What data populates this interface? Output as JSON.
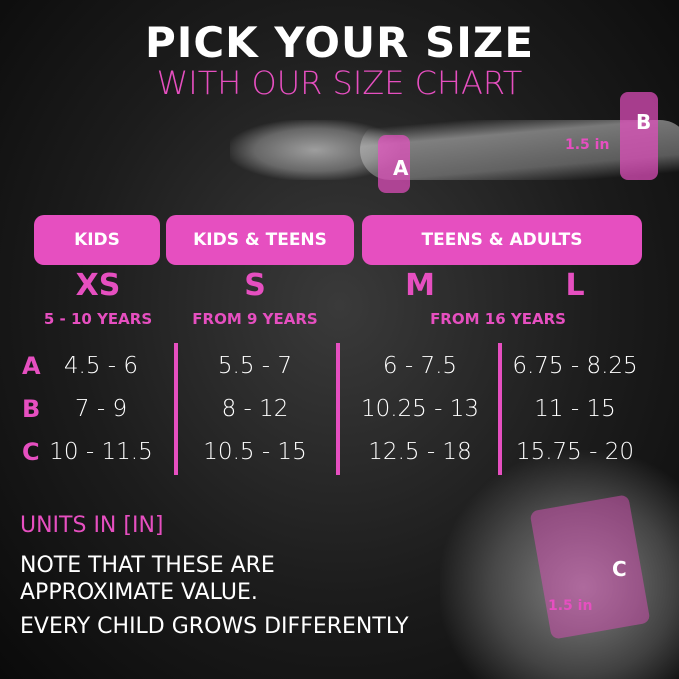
{
  "header": {
    "title": "PICK YOUR SIZE",
    "subtitle": "WITH OUR SIZE CHART"
  },
  "illustration": {
    "band_a": "A",
    "band_b": "B",
    "band_c": "C",
    "width_top": "1.5 in",
    "width_bottom": "1.5 in"
  },
  "groups": [
    "KIDS",
    "KIDS & TEENS",
    "TEENS & ADULTS"
  ],
  "sizes": [
    {
      "label": "XS",
      "age": "5 - 10 YEARS"
    },
    {
      "label": "S",
      "age": "FROM 9 YEARS"
    },
    {
      "label": "M"
    },
    {
      "label": "L"
    }
  ],
  "shared_age": "FROM 16 YEARS",
  "rows": [
    {
      "label": "A",
      "values": [
        "4.5 - 6",
        "5.5 - 7",
        "6 - 7.5",
        "6.75 - 8.25"
      ]
    },
    {
      "label": "B",
      "values": [
        "7 - 9",
        "8 - 12",
        "10.25 - 13",
        "11 - 15"
      ]
    },
    {
      "label": "C",
      "values": [
        "10 - 11.5",
        "10.5 - 15",
        "12.5 - 18",
        "15.75 - 20"
      ]
    }
  ],
  "footer": {
    "units": "UNITS IN [IN]",
    "note1": "NOTE THAT THESE ARE",
    "note2": "APPROXIMATE VALUE.",
    "note3": "EVERY CHILD GROWS DIFFERENTLY"
  },
  "colors": {
    "accent": "#e64fc0",
    "background": "#1c1c1c"
  }
}
